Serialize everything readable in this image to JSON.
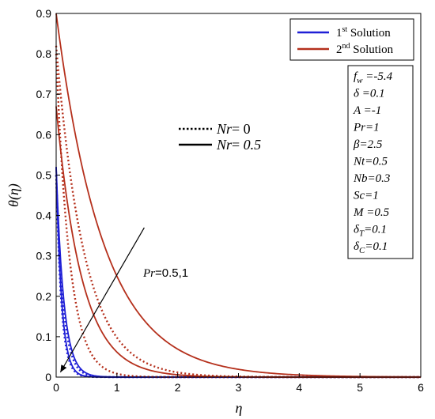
{
  "chart_data": {
    "type": "line",
    "xlabel": "η",
    "ylabel": "θ(η)",
    "xlim": [
      0,
      6
    ],
    "ylim": [
      0,
      0.9
    ],
    "x_ticks": [
      "0",
      "1",
      "2",
      "3",
      "4",
      "5",
      "6"
    ],
    "y_ticks": [
      "0",
      "0.1",
      "0.2",
      "0.3",
      "0.4",
      "0.5",
      "0.6",
      "0.7",
      "0.8",
      "0.9"
    ],
    "legend_solutions": [
      {
        "label_main": "1",
        "label_sup": "st",
        "label_rest": " Solution",
        "color": "#1f1fd6"
      },
      {
        "label_main": "2",
        "label_sup": "nd",
        "label_rest": " Solution",
        "color": "#b5301c"
      }
    ],
    "legend_styles": [
      {
        "symbol": "Nr",
        "eq": "= ",
        "value": "0",
        "style": "dotted"
      },
      {
        "symbol": "Nr",
        "eq": "= ",
        "value": "0.5",
        "style": "solid"
      }
    ],
    "parameters": [
      {
        "sym": "f",
        "sub": "w",
        "val": " =-5.4"
      },
      {
        "sym": "δ",
        "sub": "",
        "val": " =0.1"
      },
      {
        "sym": "A",
        "sub": "",
        "val": " =-1"
      },
      {
        "sym": "Pr",
        "sub": "",
        "val": "=1"
      },
      {
        "sym": "β",
        "sub": "",
        "val": "=2.5"
      },
      {
        "sym": "Nt",
        "sub": "",
        "val": "=0.5"
      },
      {
        "sym": "Nb",
        "sub": "",
        "val": "=0.3"
      },
      {
        "sym": "Sc",
        "sub": "",
        "val": "=1"
      },
      {
        "sym": "M",
        "sub": "",
        "val": " =0.5"
      },
      {
        "sym": "δ",
        "sub": "T",
        "val": "=0.1"
      },
      {
        "sym": "δ",
        "sub": "C",
        "val": "=0.1"
      }
    ],
    "annotation": {
      "sym": "Pr",
      "val": "=0.5,1",
      "from": [
        1.45,
        0.37
      ],
      "to": [
        0.07,
        0.012
      ]
    },
    "series": [
      {
        "solution": "1st",
        "Nr": "0.5",
        "Pr": "0.5",
        "color": "#1f1fd6",
        "style": "solid",
        "y0": 0.52,
        "decay": 0.125
      },
      {
        "solution": "1st",
        "Nr": "0.5",
        "Pr": "1",
        "color": "#1f1fd6",
        "style": "solid",
        "y0": 0.52,
        "decay": 0.09
      },
      {
        "solution": "1st",
        "Nr": "0",
        "Pr": "0.5",
        "color": "#1f1fd6",
        "style": "dotted",
        "y0": 0.5,
        "decay": 0.115
      },
      {
        "solution": "1st",
        "Nr": "0",
        "Pr": "1",
        "color": "#1f1fd6",
        "style": "dotted",
        "y0": 0.5,
        "decay": 0.085
      },
      {
        "solution": "2nd",
        "Nr": "0.5",
        "Pr": "0.5",
        "color": "#b5301c",
        "style": "solid",
        "y0": 0.9,
        "decay": 0.78
      },
      {
        "solution": "2nd",
        "Nr": "0.5",
        "Pr": "1",
        "color": "#b5301c",
        "style": "solid",
        "y0": 0.67,
        "decay": 0.42
      },
      {
        "solution": "2nd",
        "Nr": "0",
        "Pr": "0.5",
        "color": "#b5301c",
        "style": "dotted",
        "y0": 0.82,
        "decay": 0.47
      },
      {
        "solution": "2nd",
        "Nr": "0",
        "Pr": "1",
        "color": "#b5301c",
        "style": "dotted",
        "y0": 0.8,
        "decay": 0.22
      }
    ]
  }
}
